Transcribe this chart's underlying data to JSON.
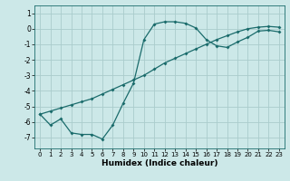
{
  "xlabel": "Humidex (Indice chaleur)",
  "ylabel": "",
  "xlim": [
    -0.5,
    23.5
  ],
  "ylim": [
    -7.7,
    1.5
  ],
  "yticks": [
    1,
    0,
    -1,
    -2,
    -3,
    -4,
    -5,
    -6,
    -7
  ],
  "xticks": [
    0,
    1,
    2,
    3,
    4,
    5,
    6,
    7,
    8,
    9,
    10,
    11,
    12,
    13,
    14,
    15,
    16,
    17,
    18,
    19,
    20,
    21,
    22,
    23
  ],
  "bg_color": "#cce8e8",
  "grid_color": "#aacccc",
  "line_color": "#1a6b6b",
  "line1_x": [
    0,
    1,
    2,
    3,
    4,
    5,
    6,
    7,
    8,
    9,
    10,
    11,
    12,
    13,
    14,
    15,
    16,
    17,
    18,
    19,
    20,
    21,
    22,
    23
  ],
  "line1_y": [
    -5.5,
    -6.2,
    -5.8,
    -6.7,
    -6.8,
    -6.8,
    -7.1,
    -6.2,
    -4.8,
    -3.5,
    -0.7,
    0.3,
    0.45,
    0.45,
    0.35,
    0.05,
    -0.7,
    -1.1,
    -1.2,
    -0.85,
    -0.55,
    -0.15,
    -0.1,
    -0.2
  ],
  "line2_x": [
    0,
    1,
    2,
    3,
    4,
    5,
    6,
    7,
    8,
    9,
    10,
    11,
    12,
    13,
    14,
    15,
    16,
    17,
    18,
    19,
    20,
    21,
    22,
    23
  ],
  "line2_y": [
    -5.5,
    -5.3,
    -5.1,
    -4.9,
    -4.7,
    -4.5,
    -4.2,
    -3.9,
    -3.6,
    -3.3,
    -3.0,
    -2.6,
    -2.2,
    -1.9,
    -1.6,
    -1.3,
    -1.0,
    -0.7,
    -0.45,
    -0.2,
    0.0,
    0.1,
    0.15,
    0.1
  ]
}
